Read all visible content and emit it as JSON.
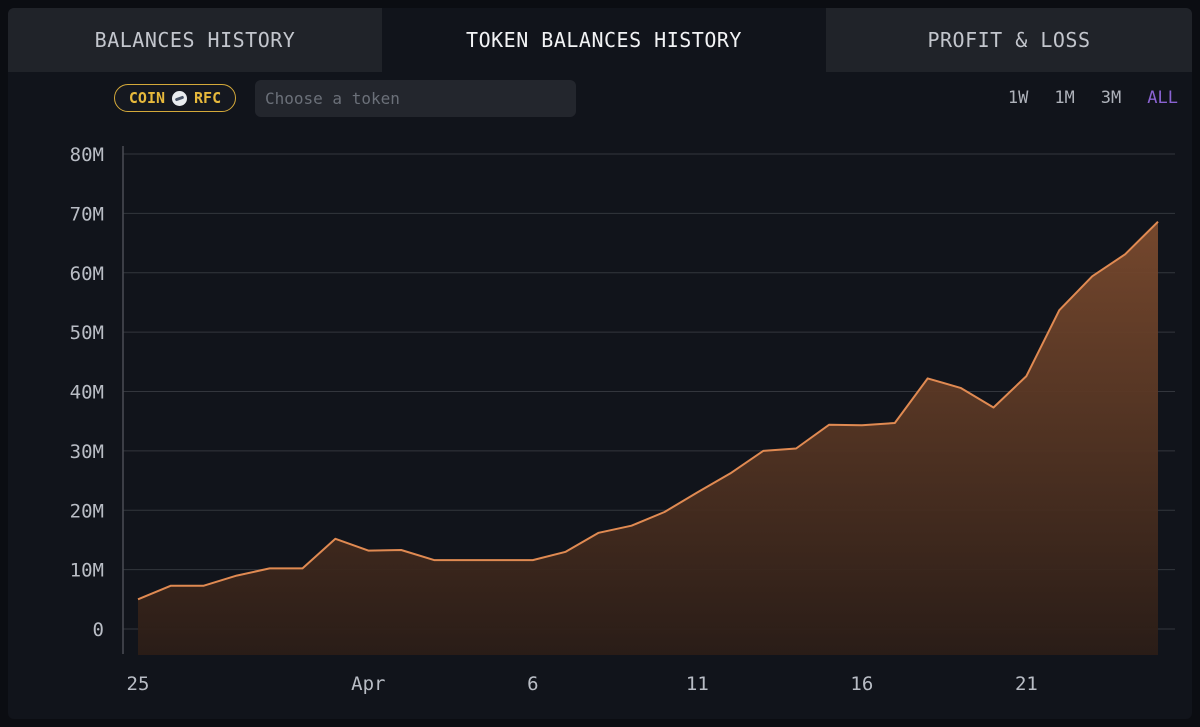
{
  "tabs": [
    {
      "label": "BALANCES HISTORY",
      "active": false
    },
    {
      "label": "TOKEN BALANCES HISTORY",
      "active": true
    },
    {
      "label": "PROFIT & LOSS",
      "active": false
    }
  ],
  "coin_badge": {
    "coin_label": "COIN",
    "token_label": "RFC",
    "icon": "rfc-token-icon"
  },
  "token_search": {
    "placeholder": "Choose a token",
    "value": ""
  },
  "ranges": [
    {
      "label": "1W",
      "active": false
    },
    {
      "label": "1M",
      "active": false
    },
    {
      "label": "3M",
      "active": false
    },
    {
      "label": "ALL",
      "active": true
    }
  ],
  "colors": {
    "line": "#e08a52",
    "fill": "#6b402a",
    "accent": "#8a63d2",
    "badge": "#e7b93c"
  },
  "chart_data": {
    "type": "area",
    "title": "",
    "xlabel": "",
    "ylabel": "",
    "ylim": [
      0,
      80000000
    ],
    "yticks": [
      0,
      10000000,
      20000000,
      30000000,
      40000000,
      50000000,
      60000000,
      70000000,
      80000000
    ],
    "ytick_labels": [
      "0",
      "10M",
      "20M",
      "30M",
      "40M",
      "50M",
      "60M",
      "70M",
      "80M"
    ],
    "xtick_labels": [
      {
        "label": "25",
        "date": "Mar 25"
      },
      {
        "label": "Apr",
        "date": "Apr 1"
      },
      {
        "label": "6",
        "date": "Apr 6"
      },
      {
        "label": "11",
        "date": "Apr 11"
      },
      {
        "label": "16",
        "date": "Apr 16"
      },
      {
        "label": "21",
        "date": "Apr 21"
      }
    ],
    "grid": true,
    "series": [
      {
        "x": [
          "Mar 25",
          "Mar 26",
          "Mar 27",
          "Mar 28",
          "Mar 29",
          "Mar 30",
          "Mar 31",
          "Apr 1",
          "Apr 2",
          "Apr 3",
          "Apr 4",
          "Apr 5",
          "Apr 6",
          "Apr 7",
          "Apr 8",
          "Apr 9",
          "Apr 10",
          "Apr 11",
          "Apr 12",
          "Apr 13",
          "Apr 14",
          "Apr 15",
          "Apr 16",
          "Apr 17",
          "Apr 18",
          "Apr 19",
          "Apr 20",
          "Apr 21",
          "Apr 22",
          "Apr 23",
          "Apr 24",
          "Apr 25"
        ],
        "values": [
          5000000,
          7300000,
          7300000,
          9000000,
          10200000,
          10200000,
          15200000,
          13200000,
          13300000,
          11600000,
          11600000,
          11600000,
          11600000,
          13000000,
          16200000,
          17400000,
          19700000,
          23000000,
          26200000,
          30000000,
          30400000,
          34400000,
          34300000,
          34700000,
          42200000,
          40600000,
          37300000,
          42600000,
          53700000,
          59400000,
          63100000,
          68600000
        ]
      }
    ]
  }
}
